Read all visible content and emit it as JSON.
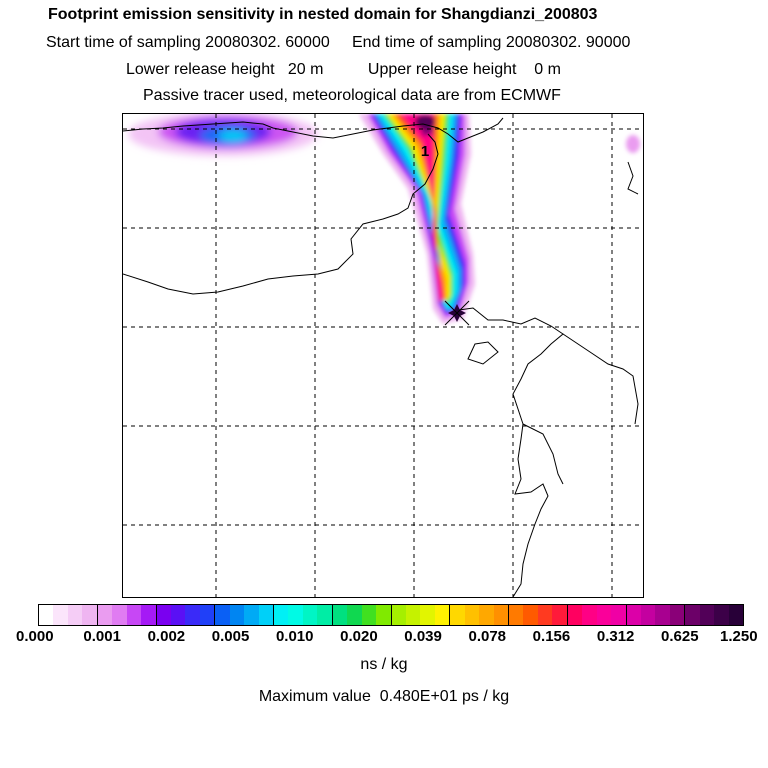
{
  "header": {
    "title": "Footprint emission sensitivity in nested domain for Shangdianzi_200803",
    "sampling_line": "Start time of sampling 20080302. 60000     End time of sampling 20080302. 90000",
    "release_line": "Lower release height   20 m          Upper release height    0 m",
    "tracer_line": "Passive tracer used, meteorological data are from ECMWF"
  },
  "map": {
    "receptor_marker_label": "1",
    "receptor_symbol": "star"
  },
  "colorbar": {
    "ticks": [
      "0.000",
      "0.001",
      "0.002",
      "0.005",
      "0.010",
      "0.020",
      "0.039",
      "0.078",
      "0.156",
      "0.312",
      "0.625",
      "1.250"
    ],
    "colors": [
      [
        "#ffffff",
        "#fbe5fb",
        "#f5cdf6",
        "#efb5f1"
      ],
      [
        "#ea9cf0",
        "#e07cf2",
        "#c747f5",
        "#a51af5"
      ],
      [
        "#7a00f0",
        "#5a10f5",
        "#3a2af8",
        "#2040f8"
      ],
      [
        "#0a60f5",
        "#0085f2",
        "#00aaf5",
        "#00d0f8"
      ],
      [
        "#00f0f5",
        "#00fae5",
        "#00f5c5",
        "#00eda5"
      ],
      [
        "#00e080",
        "#10d850",
        "#40e020",
        "#80ea00"
      ],
      [
        "#a5ef00",
        "#c5f200",
        "#e2f500",
        "#fff200"
      ],
      [
        "#ffd800",
        "#ffc000",
        "#ffa800",
        "#ff9000"
      ],
      [
        "#ff7a00",
        "#ff5a00",
        "#ff3a20",
        "#ff1a3a"
      ],
      [
        "#ff0060",
        "#ff0085",
        "#fa009a",
        "#f000a5"
      ],
      [
        "#dc00a8",
        "#c400a0",
        "#a80090",
        "#8a0078"
      ],
      [
        "#6c0068",
        "#520058",
        "#3c0048",
        "#280038"
      ]
    ],
    "units": "ns / kg",
    "max_value_text": "Maximum value  0.480E+01 ps / kg"
  }
}
